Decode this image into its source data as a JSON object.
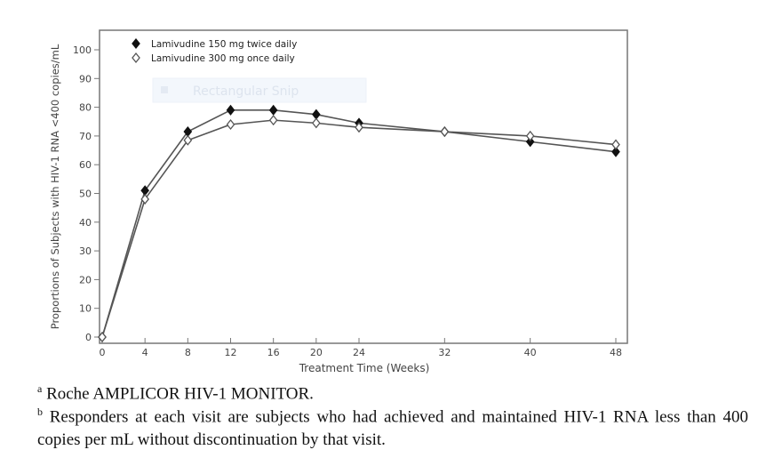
{
  "chart_data": {
    "type": "line",
    "title": "",
    "xlabel": "Treatment Time (Weeks)",
    "ylabel": "Proportions of Subjects with HIV-1 RNA <400 copies/mL",
    "x": [
      0,
      4,
      8,
      12,
      16,
      20,
      24,
      32,
      40,
      48
    ],
    "xticks": [
      "0",
      "4",
      "8",
      "12",
      "16",
      "20",
      "24",
      "32",
      "40",
      "48"
    ],
    "yticks": [
      "0",
      "10",
      "20",
      "30",
      "40",
      "50",
      "60",
      "70",
      "80",
      "90",
      "100"
    ],
    "xlim": [
      0,
      48
    ],
    "ylim": [
      0,
      100
    ],
    "grid": false,
    "legend_position": "top-left",
    "series": [
      {
        "name": "Lamivudine 150 mg twice daily",
        "marker": "filled-diamond",
        "values": [
          0,
          51,
          71.5,
          79,
          79,
          77.5,
          74.5,
          71.5,
          68,
          64.5
        ]
      },
      {
        "name": "Lamivudine 300 mg once daily",
        "marker": "open-diamond",
        "values": [
          0,
          48,
          68.5,
          74,
          75.5,
          74.5,
          73,
          71.5,
          70,
          67
        ]
      }
    ]
  },
  "overlay": {
    "label": "Rectangular Snip"
  },
  "footnotes": [
    {
      "mark": "a",
      "text": "Roche AMPLICOR HIV-1 MONITOR."
    },
    {
      "mark": "b",
      "text": "Responders at each visit are subjects who had achieved and maintained HIV-1 RNA less than 400 copies per mL without discontinuation by that visit."
    }
  ],
  "colors": {
    "line": "#555555",
    "text": "#333333"
  }
}
